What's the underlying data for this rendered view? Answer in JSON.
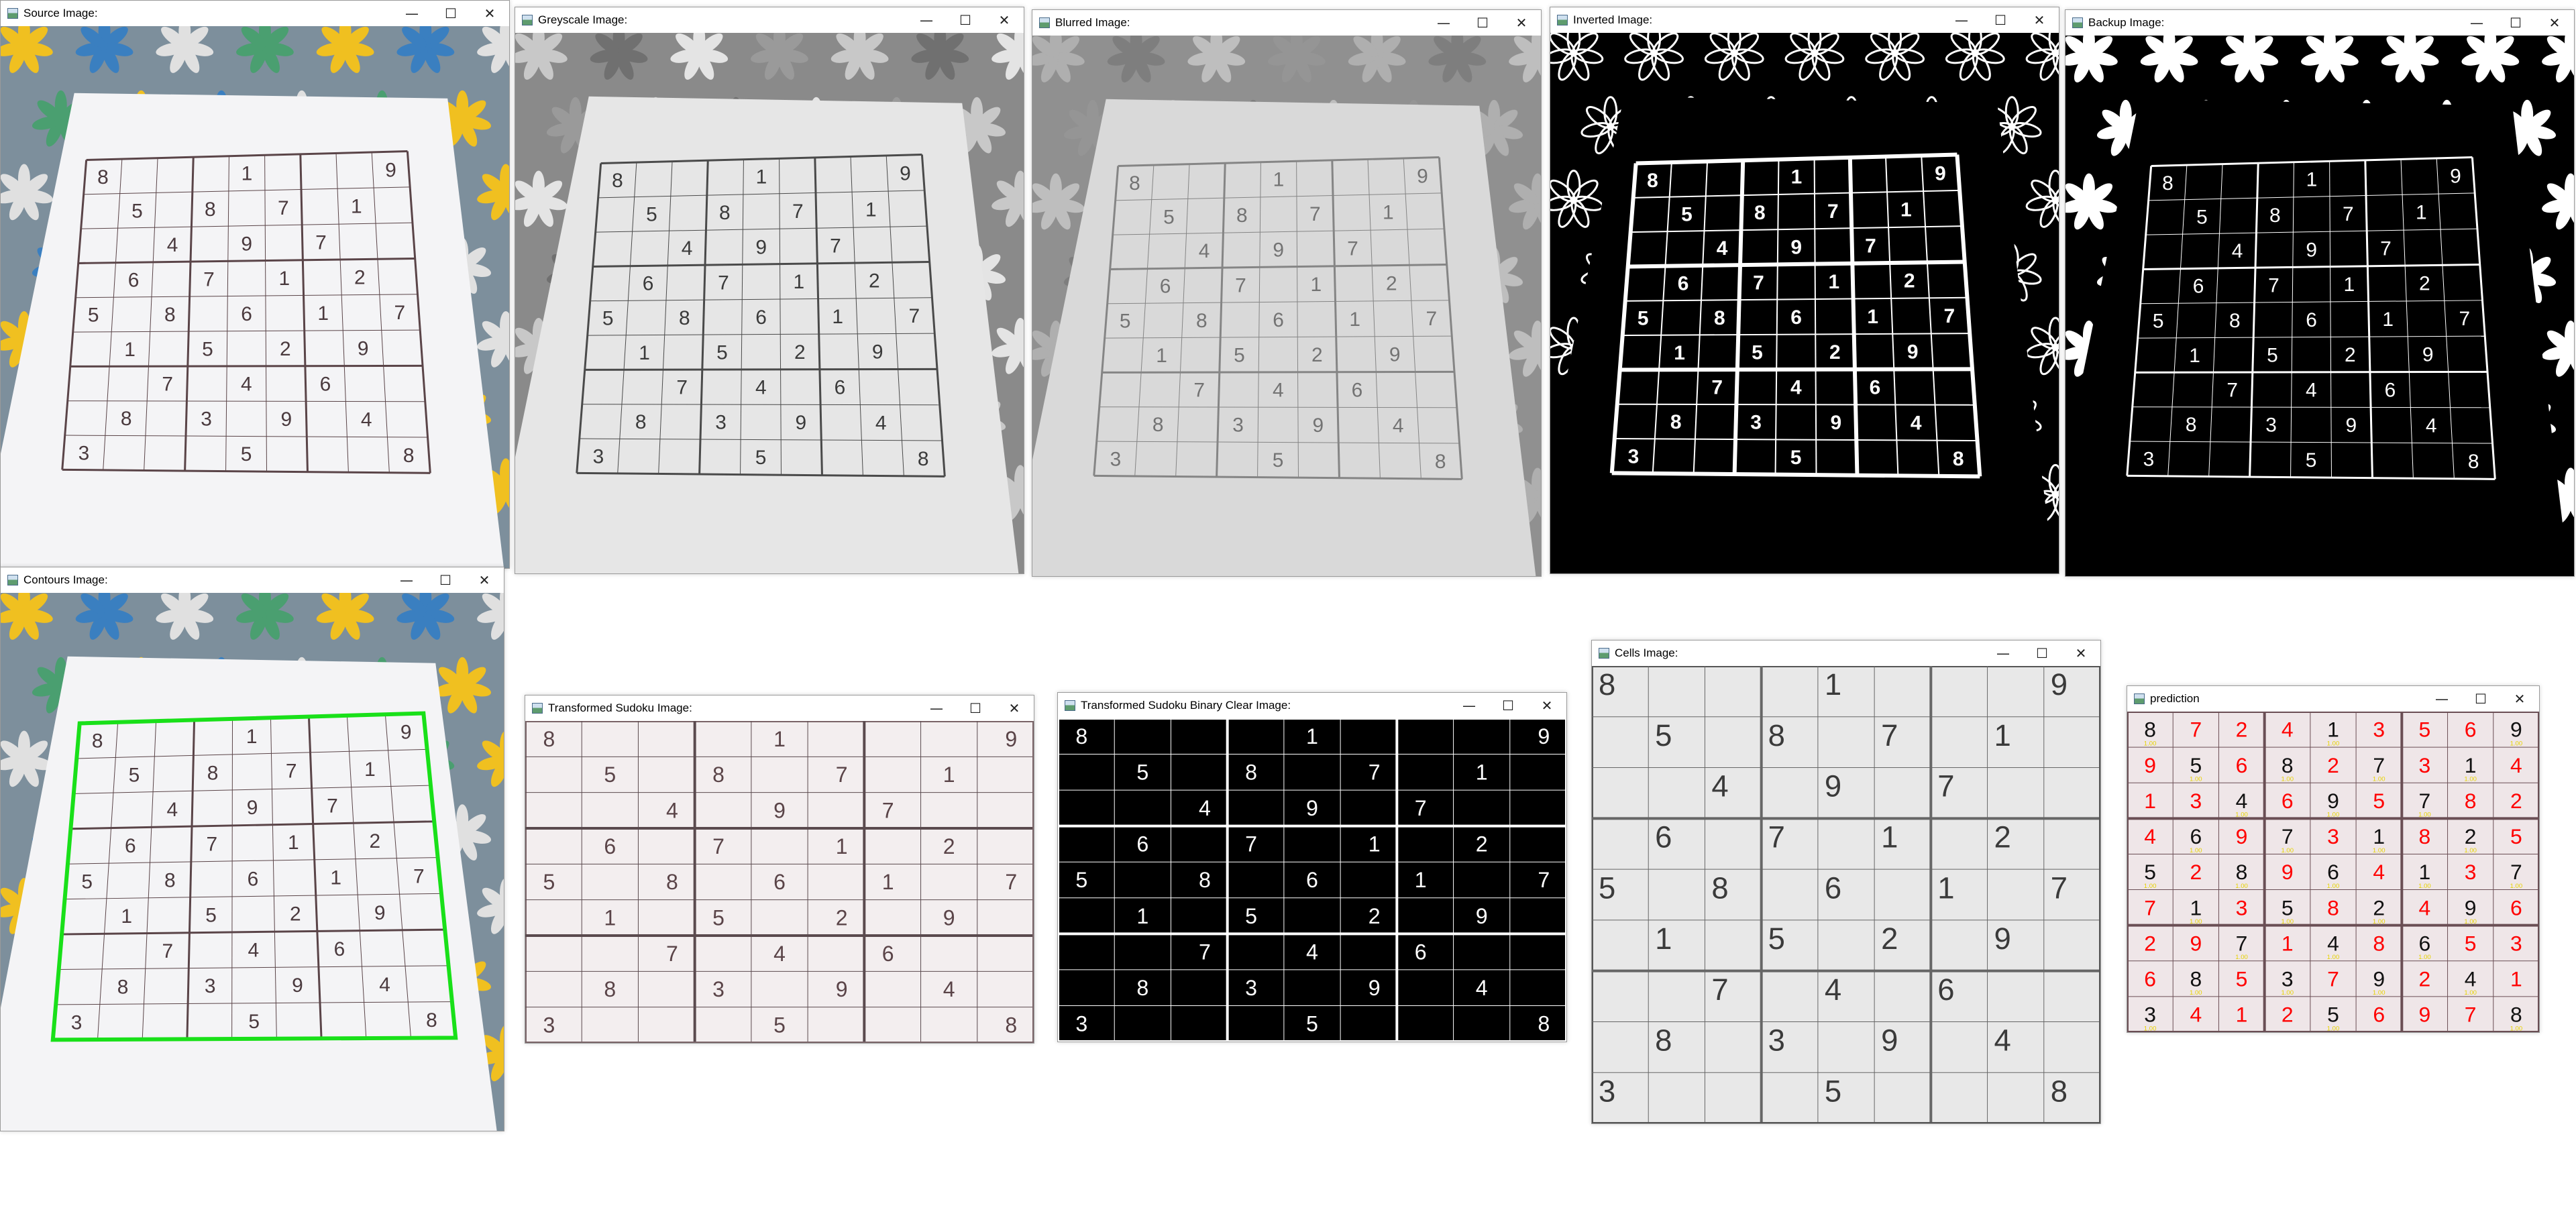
{
  "windows": {
    "source": {
      "title": "Source Image:"
    },
    "greyscale": {
      "title": "Greyscale Image:"
    },
    "blurred": {
      "title": "Blurred Image:"
    },
    "inverted": {
      "title": "Inverted Image:"
    },
    "backup": {
      "title": "Backup Image:"
    },
    "contours": {
      "title": "Contours Image:"
    },
    "transformed": {
      "title": "Transformed Sudoku Image:"
    },
    "transformed_binary": {
      "title": "Transformed Sudoku Binary Clear Image:"
    },
    "cells": {
      "title": "Cells Image:"
    },
    "prediction": {
      "title": "prediction"
    }
  },
  "controls": {
    "minimize": "—",
    "maximize": "☐",
    "close": "✕"
  },
  "icons": {
    "app": "opencv-window-icon",
    "minimize": "minimize-icon",
    "maximize": "maximize-icon",
    "close": "close-icon"
  },
  "colors": {
    "contour": "#19e019",
    "pred_given": "#111111",
    "pred_filled": "#ff0000",
    "pred_confidence": "#e6d200",
    "paper": "#f4f4f6",
    "grid_ink": "#5a4448"
  },
  "puzzle": [
    [
      8,
      0,
      0,
      0,
      1,
      0,
      0,
      0,
      9
    ],
    [
      0,
      5,
      0,
      8,
      0,
      7,
      0,
      1,
      0
    ],
    [
      0,
      0,
      4,
      0,
      9,
      0,
      7,
      0,
      0
    ],
    [
      0,
      6,
      0,
      7,
      0,
      1,
      0,
      2,
      0
    ],
    [
      5,
      0,
      8,
      0,
      6,
      0,
      1,
      0,
      7
    ],
    [
      0,
      1,
      0,
      5,
      0,
      2,
      0,
      9,
      0
    ],
    [
      0,
      0,
      7,
      0,
      4,
      0,
      6,
      0,
      0
    ],
    [
      0,
      8,
      0,
      3,
      0,
      9,
      0,
      4,
      0
    ],
    [
      3,
      0,
      0,
      0,
      5,
      0,
      0,
      0,
      8
    ]
  ],
  "solution": [
    [
      8,
      7,
      2,
      4,
      1,
      3,
      5,
      6,
      9
    ],
    [
      9,
      5,
      6,
      8,
      2,
      7,
      3,
      1,
      4
    ],
    [
      1,
      3,
      4,
      6,
      9,
      5,
      7,
      8,
      2
    ],
    [
      4,
      6,
      9,
      7,
      3,
      1,
      8,
      2,
      5
    ],
    [
      5,
      2,
      8,
      9,
      6,
      4,
      1,
      3,
      7
    ],
    [
      7,
      1,
      3,
      5,
      8,
      2,
      4,
      9,
      6
    ],
    [
      2,
      9,
      7,
      1,
      4,
      8,
      6,
      5,
      3
    ],
    [
      6,
      8,
      5,
      3,
      7,
      9,
      2,
      4,
      1
    ],
    [
      3,
      4,
      1,
      2,
      5,
      6,
      9,
      7,
      8
    ]
  ],
  "prediction_confidence_label": "1.00"
}
